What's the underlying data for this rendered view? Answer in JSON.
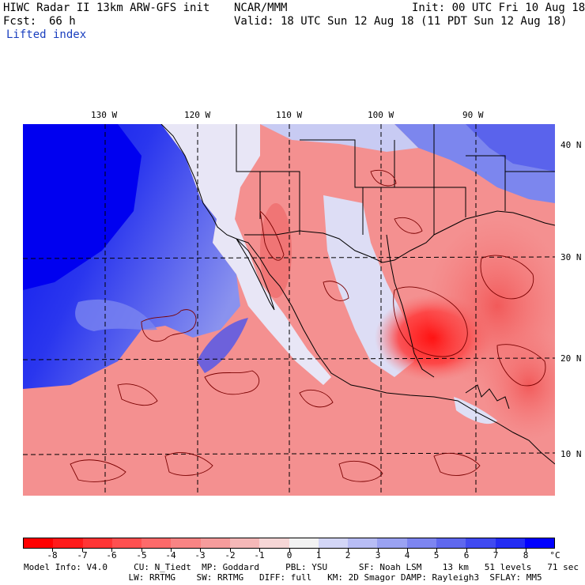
{
  "header": {
    "model_title": "HIWC Radar II 13km ARW-GFS init",
    "institution": "NCAR/MMM",
    "init_time": "Init: 00 UTC Fri 10 Aug 18",
    "forecast_label": "Fcst:",
    "forecast_hours": "66 h",
    "valid_time": "Valid: 18 UTC Sun 12 Aug 18 (11 PDT Sun 12 Aug 18)",
    "field_name": "Lifted index"
  },
  "map": {
    "lon_labels": [
      "130 W",
      "120 W",
      "110 W",
      "100 W",
      "90 W"
    ],
    "lat_labels": [
      "40 N",
      "30 N",
      "20 N",
      "10 N"
    ],
    "colors": {
      "strong_negative": "#ff0000",
      "negative": "#f08080",
      "neutral": "#f5f3f6",
      "positive": "#a0a8f0",
      "strong_positive": "#0000ff",
      "boundaries": "#000000",
      "contours": "#7a0000"
    }
  },
  "colorbar": {
    "unit": "°C",
    "labels": [
      "-8",
      "-7",
      "-6",
      "-5",
      "-4",
      "-3",
      "-2",
      "-1",
      "0",
      "1",
      "2",
      "3",
      "4",
      "5",
      "6",
      "7",
      "8"
    ],
    "colors": [
      "#ff0000",
      "#ff1a1a",
      "#ff3535",
      "#ff5050",
      "#fd6a6a",
      "#f98484",
      "#f69c9c",
      "#f5b8b8",
      "#f6d6d6",
      "#f2f2f2",
      "#d3d6f7",
      "#b8bdf5",
      "#9aa2f2",
      "#7d85f0",
      "#5f68ee",
      "#404af0",
      "#232cf3",
      "#0000ff"
    ]
  },
  "footer": {
    "line1": "Model Info: V4.0     CU: N_Tiedt  MP: Goddard     PBL: YSU      SF: Noah LSM    13 km   51 levels   71 sec",
    "line2": "                    LW: RRTMG    SW: RRTMG   DIFF: full   KM: 2D Smagor DAMP: Rayleigh3  SFLAY: MM5"
  }
}
